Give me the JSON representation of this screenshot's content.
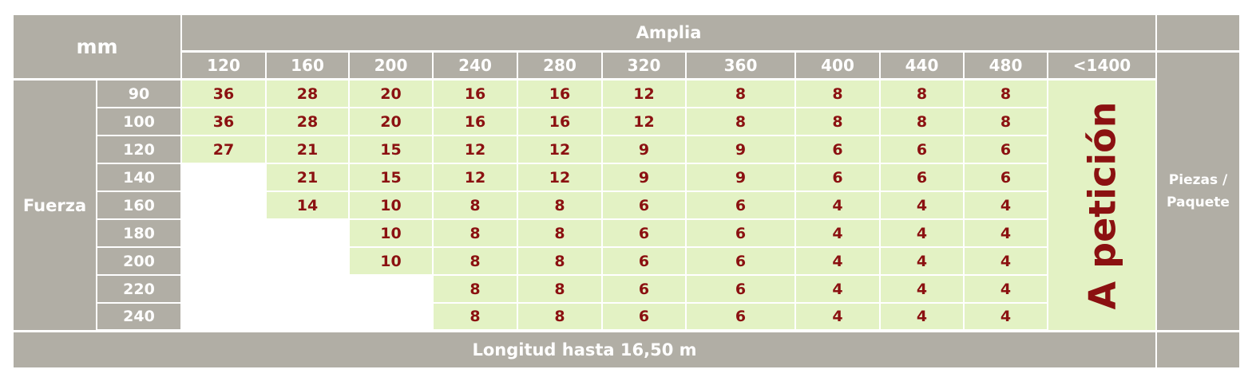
{
  "table": {
    "corner_label": "mm",
    "width_header": "Amplia",
    "width_columns": [
      "120",
      "160",
      "200",
      "240",
      "280",
      "320",
      "360",
      "400",
      "440",
      "480",
      "<1400"
    ],
    "row_group_label": "Fuerza",
    "rows": [
      {
        "label": "90",
        "values": [
          "36",
          "28",
          "20",
          "16",
          "16",
          "12",
          "8",
          "8",
          "8",
          "8"
        ]
      },
      {
        "label": "100",
        "values": [
          "36",
          "28",
          "20",
          "16",
          "16",
          "12",
          "8",
          "8",
          "8",
          "8"
        ]
      },
      {
        "label": "120",
        "values": [
          "27",
          "21",
          "15",
          "12",
          "12",
          "9",
          "9",
          "6",
          "6",
          "6"
        ]
      },
      {
        "label": "140",
        "values": [
          "",
          "21",
          "15",
          "12",
          "12",
          "9",
          "9",
          "6",
          "6",
          "6"
        ]
      },
      {
        "label": "160",
        "values": [
          "",
          "14",
          "10",
          "8",
          "8",
          "6",
          "6",
          "4",
          "4",
          "4"
        ]
      },
      {
        "label": "180",
        "values": [
          "",
          "",
          "10",
          "8",
          "8",
          "6",
          "6",
          "4",
          "4",
          "4"
        ]
      },
      {
        "label": "200",
        "values": [
          "",
          "",
          "10",
          "8",
          "8",
          "6",
          "6",
          "4",
          "4",
          "4"
        ]
      },
      {
        "label": "220",
        "values": [
          "",
          "",
          "",
          "8",
          "8",
          "6",
          "6",
          "4",
          "4",
          "4"
        ]
      },
      {
        "label": "240",
        "values": [
          "",
          "",
          "",
          "8",
          "8",
          "6",
          "6",
          "4",
          "4",
          "4"
        ]
      }
    ],
    "on_request_label": "A petición",
    "pieces_label": "Piezas / Paquete",
    "footer_label": "Longitud hasta 16,50 m"
  },
  "colors": {
    "header_gray": "#b1aea5",
    "value_green": "#e3f2c4",
    "value_text": "#8b1111"
  }
}
